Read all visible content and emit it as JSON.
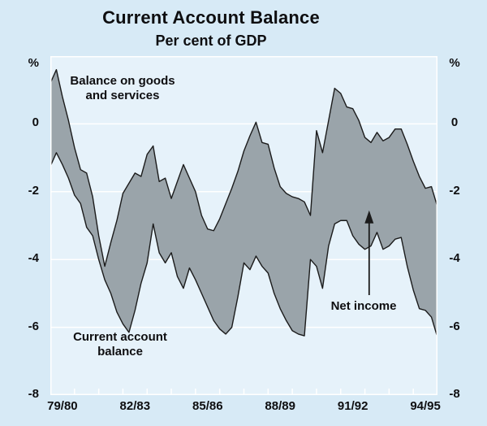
{
  "chart": {
    "title": "Current Account Balance",
    "subtitle": "Per cent of GDP",
    "y_axis": {
      "unit": "%",
      "tick_labels": [
        "0",
        "-2",
        "-4",
        "-6",
        "-8"
      ],
      "tick_values": [
        0,
        -2,
        -4,
        -6,
        -8
      ],
      "gridlines_at": [
        0,
        -2,
        -4,
        -6
      ],
      "shown_on_both_sides": true
    },
    "x_axis": {
      "labels": [
        "79/80",
        "82/83",
        "85/86",
        "88/89",
        "91/92",
        "94/95"
      ],
      "label_interval_years": 3,
      "minor_tick_count": 17
    },
    "annotations": {
      "bgs_label": "Balance on goods\nand services",
      "cab_label": "Current account\nbalance",
      "net_income_label": "Net income",
      "arrow": {
        "quarter": 52.7,
        "value_from": -5.05,
        "value_to": -2.55
      }
    },
    "colors": {
      "page_background": "#d7eaf6",
      "plot_background": "#e6f2fa",
      "band_fill": "#9aa4aa",
      "line": "#1b1b1b",
      "gridline": "#ffffff",
      "text": "#0e0e10"
    }
  },
  "chart_data": {
    "type": "area",
    "subtype": "band-between-two-lines",
    "x_unit": "quarter",
    "x_start": "1979 Q3 (FY 79/80)",
    "x_end": "1995 (FY 94/95)",
    "points_per_year": 4,
    "ylim": [
      -8,
      2
    ],
    "ylabel": "%",
    "grid": true,
    "legend_position": "in-plot text annotations",
    "x_tick_labels": [
      "79/80",
      "82/83",
      "85/86",
      "88/89",
      "91/92",
      "94/95"
    ],
    "series": [
      {
        "name": "Balance on goods and services",
        "values": [
          1.2,
          1.6,
          0.8,
          0.1,
          -0.7,
          -1.35,
          -1.45,
          -2.15,
          -3.3,
          -4.2,
          -3.5,
          -2.85,
          -2.05,
          -1.75,
          -1.45,
          -1.55,
          -0.9,
          -0.65,
          -1.7,
          -1.6,
          -2.2,
          -1.7,
          -1.2,
          -1.6,
          -2.0,
          -2.7,
          -3.1,
          -3.15,
          -2.8,
          -2.35,
          -1.9,
          -1.4,
          -0.8,
          -0.35,
          0.05,
          -0.55,
          -0.6,
          -1.3,
          -1.85,
          -2.05,
          -2.15,
          -2.2,
          -2.3,
          -2.7,
          -0.2,
          -0.85,
          0.1,
          1.05,
          0.9,
          0.5,
          0.45,
          0.1,
          -0.4,
          -0.55,
          -0.25,
          -0.5,
          -0.4,
          -0.15,
          -0.15,
          -0.6,
          -1.1,
          -1.55,
          -1.9,
          -1.85,
          -2.45
        ]
      },
      {
        "name": "Current account balance",
        "values": [
          -1.25,
          -0.85,
          -1.2,
          -1.6,
          -2.1,
          -2.35,
          -3.05,
          -3.3,
          -4.0,
          -4.6,
          -5.0,
          -5.55,
          -5.9,
          -6.15,
          -5.5,
          -4.7,
          -4.1,
          -2.95,
          -3.8,
          -4.1,
          -3.8,
          -4.5,
          -4.85,
          -4.25,
          -4.6,
          -5.0,
          -5.4,
          -5.8,
          -6.05,
          -6.2,
          -6.0,
          -5.1,
          -4.1,
          -4.3,
          -3.9,
          -4.2,
          -4.4,
          -5.0,
          -5.45,
          -5.8,
          -6.1,
          -6.2,
          -6.25,
          -4.0,
          -4.2,
          -4.85,
          -3.6,
          -2.95,
          -2.85,
          -2.85,
          -3.3,
          -3.55,
          -3.7,
          -3.6,
          -3.2,
          -3.7,
          -3.6,
          -3.4,
          -3.35,
          -4.2,
          -4.9,
          -5.45,
          -5.5,
          -5.7,
          -6.3
        ]
      }
    ],
    "net_income_note": "Net income is the gap between the two lines (indicated by vertical arrow)"
  }
}
